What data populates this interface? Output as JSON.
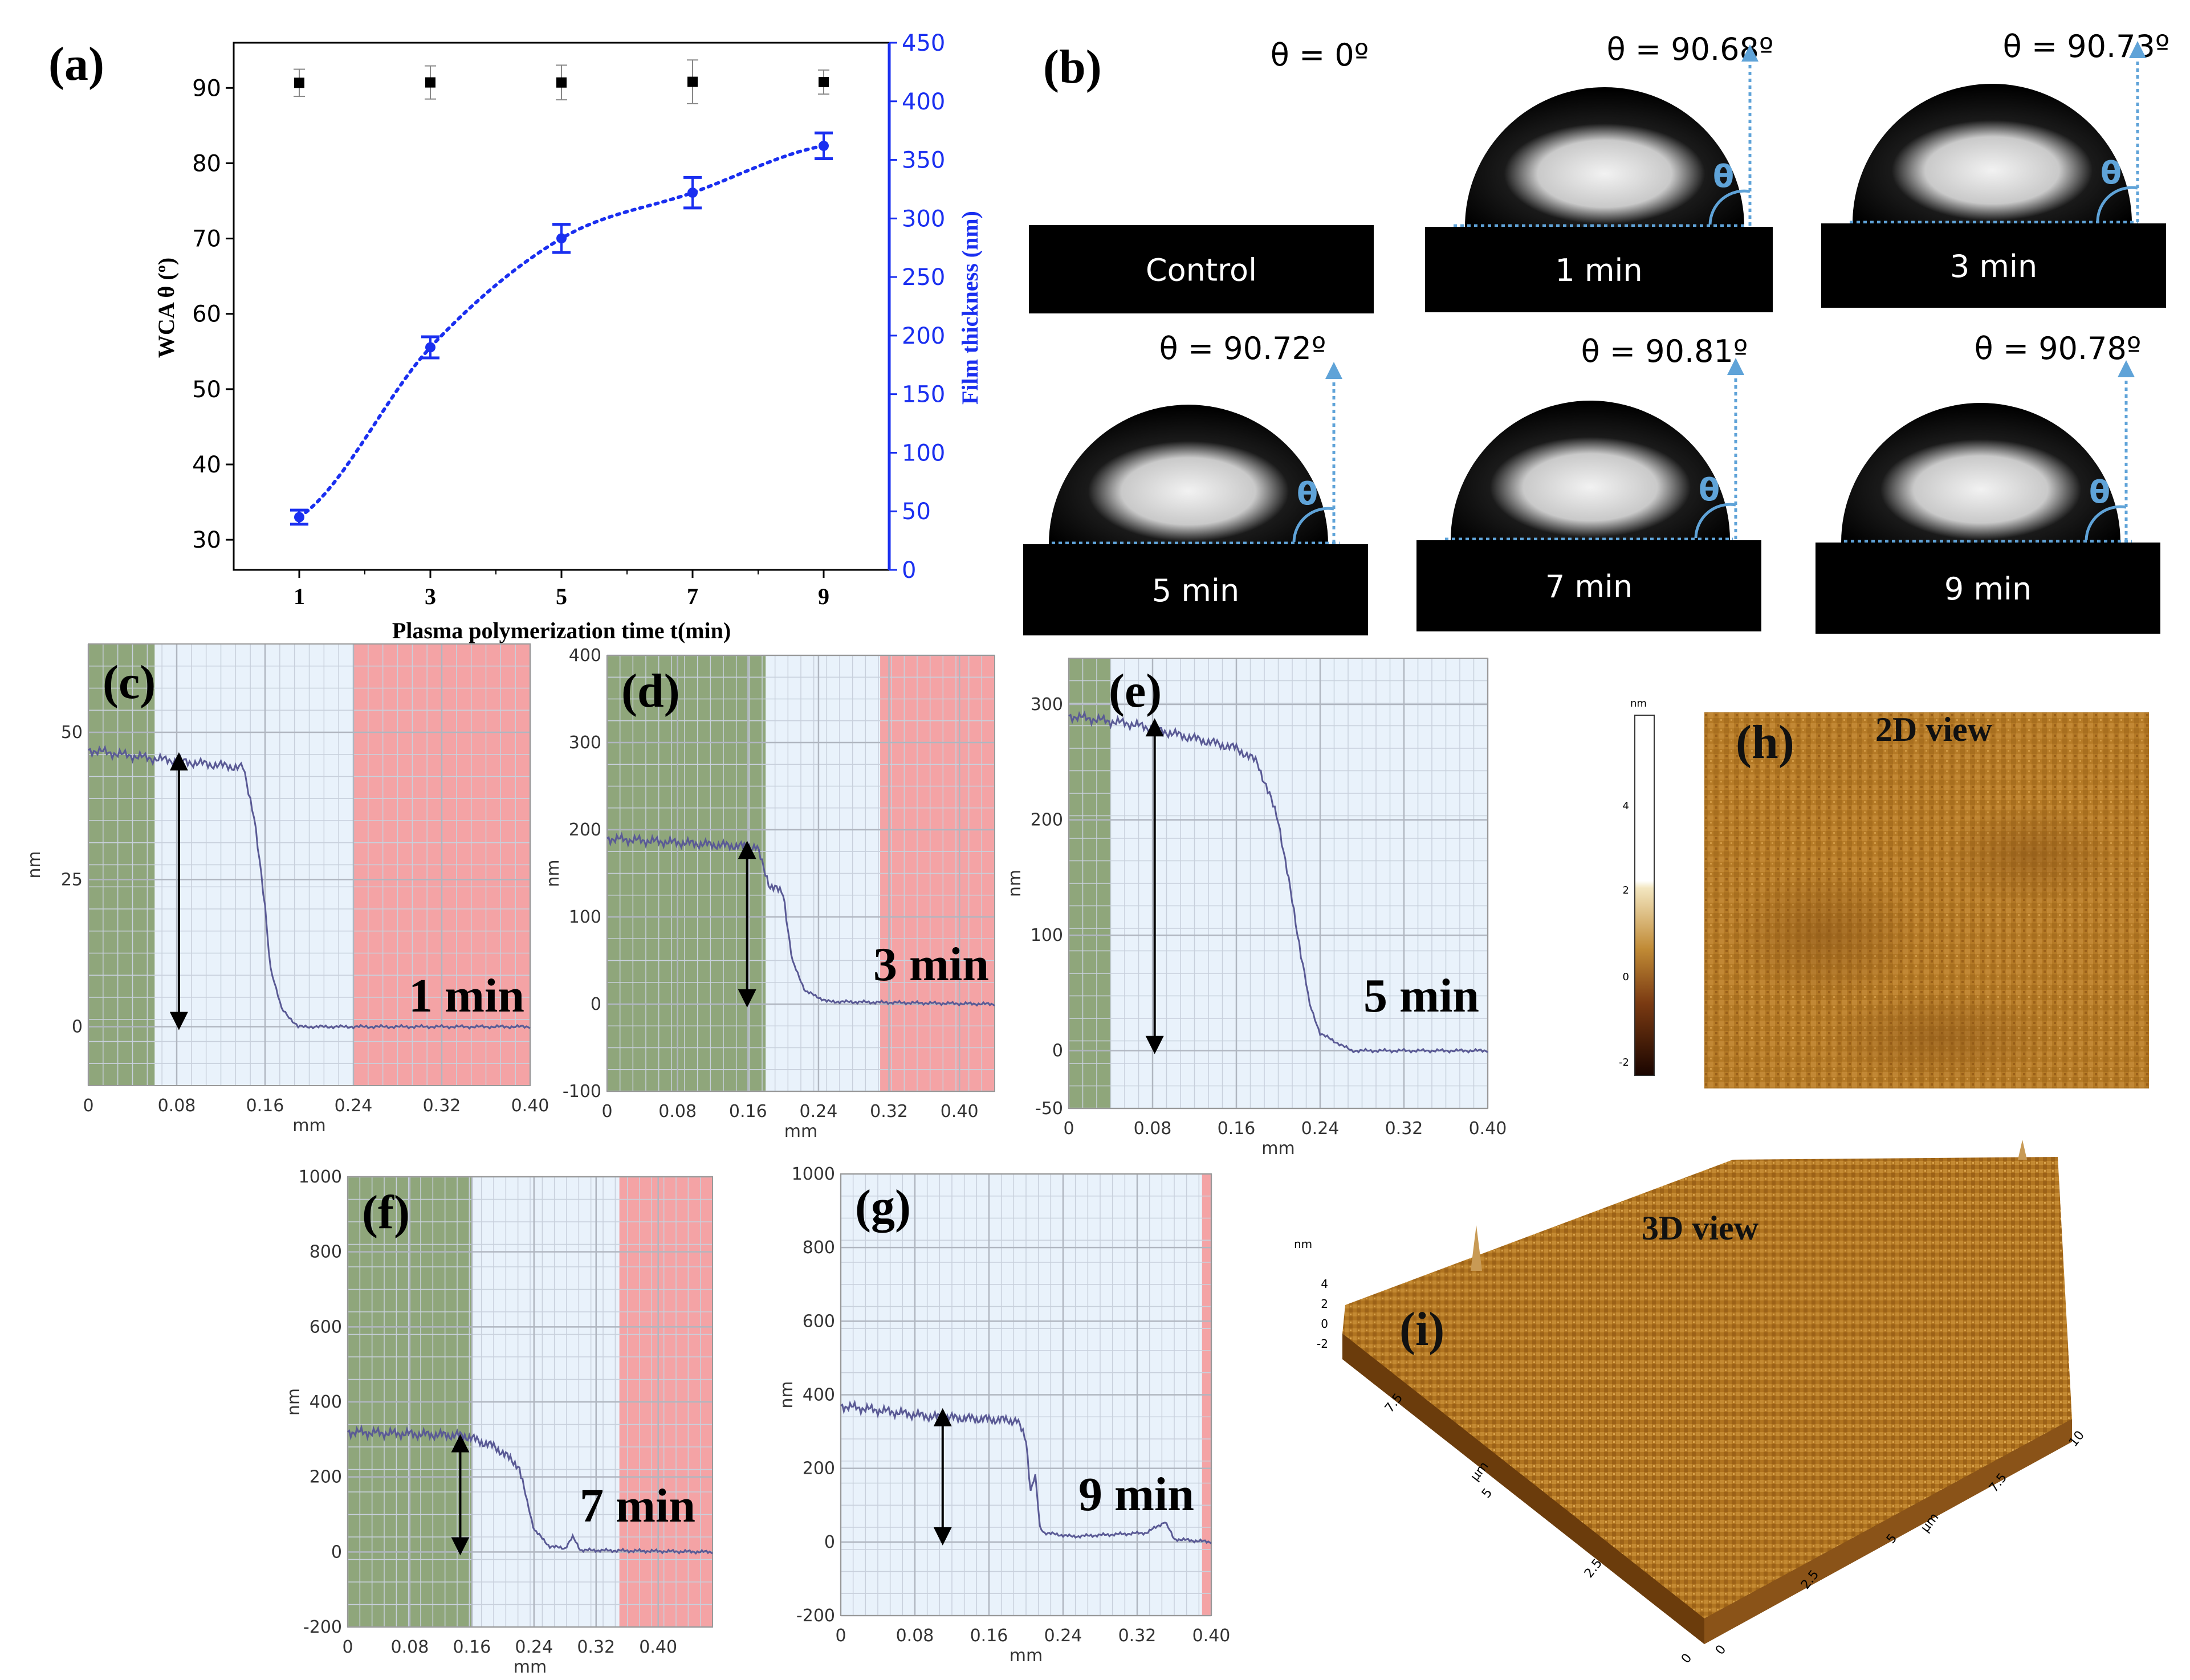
{
  "colors": {
    "wca_marker": "#000000",
    "thickness_line": "#1a2ff0",
    "axis_blue": "#1a2ff0",
    "profile_line": "#5a5a95",
    "green_region": "#8fa67b",
    "red_region": "#f4a3a5",
    "blue_region": "#e9f2fb",
    "arrow_blue": "#5fa3d8",
    "afm_brown": "#a8721e"
  },
  "chart_data": [
    {
      "panel": "(a)",
      "type": "scatter",
      "xlabel": "Plasma polymerization time t(min)",
      "ylabel": "WCA θ (º)",
      "ylabel_right": "Film thickness (nm)",
      "x": [
        1,
        3,
        5,
        7,
        9
      ],
      "xticks": [
        "1",
        "3",
        "5",
        "7",
        "9"
      ],
      "xlim": [
        0,
        10
      ],
      "ylim": [
        26,
        96
      ],
      "ylim_right": [
        0,
        450
      ],
      "yticks": [
        "30",
        "40",
        "50",
        "60",
        "70",
        "80",
        "90"
      ],
      "yticks_right": [
        "0",
        "50",
        "100",
        "150",
        "200",
        "250",
        "300",
        "350",
        "400",
        "450"
      ],
      "series": [
        {
          "name": "WCA",
          "axis": "left",
          "marker": "square",
          "values": [
            90.68,
            90.73,
            90.72,
            90.81,
            90.78
          ],
          "errors": [
            1.8,
            2.2,
            2.3,
            2.9,
            1.6
          ]
        },
        {
          "name": "Film thickness",
          "axis": "right",
          "marker": "circle",
          "style": "dotted-fit",
          "values": [
            45,
            190,
            283,
            322,
            362
          ],
          "errors": [
            6,
            9,
            12,
            13,
            11
          ]
        }
      ]
    },
    {
      "panel": "(c)",
      "type": "line",
      "xlabel": "mm",
      "ylabel": "nm",
      "label": "1 min",
      "xlim": [
        0,
        0.4
      ],
      "ylim": [
        -10,
        65
      ],
      "xticks": [
        "0",
        "0.08",
        "0.16",
        "0.24",
        "0.32",
        "0.40"
      ],
      "yticks": [
        "0",
        "25",
        "50"
      ],
      "regions": {
        "green": [
          0,
          0.06
        ],
        "red": [
          0.24,
          0.4
        ]
      },
      "x": [
        0,
        0.06,
        0.14,
        0.15,
        0.16,
        0.165,
        0.175,
        0.19,
        0.22,
        0.4
      ],
      "values": [
        47,
        45.5,
        44,
        36,
        20,
        10,
        3,
        0,
        0,
        0
      ]
    },
    {
      "panel": "(d)",
      "type": "line",
      "xlabel": "mm",
      "ylabel": "nm",
      "label": "3 min",
      "xlim": [
        0,
        0.44
      ],
      "ylim": [
        -100,
        400
      ],
      "xticks": [
        "0",
        "0.08",
        "0.16",
        "0.24",
        "0.32",
        "0.40"
      ],
      "yticks": [
        "-100",
        "0",
        "100",
        "200",
        "300",
        "400"
      ],
      "regions": {
        "green": [
          0,
          0.18
        ],
        "red": [
          0.31,
          0.44
        ]
      },
      "x": [
        0,
        0.17,
        0.185,
        0.2,
        0.21,
        0.225,
        0.25,
        0.44
      ],
      "values": [
        190,
        180,
        135,
        128,
        50,
        15,
        3,
        0
      ]
    },
    {
      "panel": "(e)",
      "type": "line",
      "xlabel": "mm",
      "ylabel": "nm",
      "label": "5 min",
      "xlim": [
        0,
        0.4
      ],
      "ylim": [
        -50,
        340
      ],
      "xticks": [
        "0",
        "0.08",
        "0.16",
        "0.24",
        "0.32",
        "0.40"
      ],
      "yticks": [
        "-50",
        "0",
        "100",
        "200",
        "300"
      ],
      "regions": {
        "green": [
          0,
          0.04
        ]
      },
      "x": [
        0,
        0.06,
        0.16,
        0.18,
        0.2,
        0.215,
        0.23,
        0.24,
        0.27,
        0.4
      ],
      "values": [
        290,
        283,
        262,
        250,
        200,
        120,
        40,
        15,
        0,
        0
      ]
    },
    {
      "panel": "(f)",
      "type": "line",
      "xlabel": "mm",
      "ylabel": "nm",
      "label": "7 min",
      "xlim": [
        0,
        0.47
      ],
      "ylim": [
        -200,
        1000
      ],
      "xticks": [
        "0",
        "0.08",
        "0.16",
        "0.24",
        "0.32",
        "0.40"
      ],
      "yticks": [
        "-200",
        "0",
        "200",
        "400",
        "600",
        "800",
        "1000"
      ],
      "regions": {
        "green": [
          0,
          0.16
        ],
        "red": [
          0.35,
          0.47
        ]
      },
      "x": [
        0,
        0.15,
        0.19,
        0.22,
        0.24,
        0.26,
        0.28,
        0.29,
        0.3,
        0.47
      ],
      "values": [
        320,
        310,
        280,
        230,
        60,
        15,
        10,
        40,
        5,
        0
      ]
    },
    {
      "panel": "(g)",
      "type": "line",
      "xlabel": "mm",
      "ylabel": "nm",
      "label": "9 min",
      "xlim": [
        0,
        0.4
      ],
      "ylim": [
        -200,
        1000
      ],
      "xticks": [
        "0",
        "0.08",
        "0.16",
        "0.24",
        "0.32",
        "0.40"
      ],
      "yticks": [
        "-200",
        "0",
        "200",
        "400",
        "600",
        "800",
        "1000"
      ],
      "regions": {
        "red": [
          0.39,
          0.4
        ]
      },
      "x": [
        0,
        0.1,
        0.19,
        0.2,
        0.205,
        0.21,
        0.215,
        0.22,
        0.25,
        0.33,
        0.35,
        0.36,
        0.4
      ],
      "values": [
        370,
        340,
        330,
        280,
        140,
        180,
        40,
        25,
        15,
        25,
        55,
        8,
        0
      ]
    }
  ],
  "panel_labels": {
    "a": "(a)",
    "b": "(b)",
    "c": "(c)",
    "d": "(d)",
    "e": "(e)",
    "f": "(f)",
    "g": "(g)",
    "h": "(h)",
    "i": "(i)"
  },
  "droplets": [
    {
      "theta": "θ = 0º",
      "label": "Control",
      "has_drop": false
    },
    {
      "theta": "θ = 90.68º",
      "label": "1 min",
      "has_drop": true
    },
    {
      "theta": "θ = 90.73º",
      "label": "3 min",
      "has_drop": true
    },
    {
      "theta": "θ = 90.72º",
      "label": "5 min",
      "has_drop": true
    },
    {
      "theta": "θ = 90.81º",
      "label": "7 min",
      "has_drop": true
    },
    {
      "theta": "θ = 90.78º",
      "label": "9 min",
      "has_drop": true
    }
  ],
  "theta_symbol": "θ",
  "afm_2d": {
    "title": "2D view",
    "colorbar_unit": "nm",
    "colorbar_ticks": [
      "4",
      "2",
      "0",
      "-2"
    ]
  },
  "afm_3d": {
    "title": "3D view",
    "z_unit": "nm",
    "z_ticks": [
      "4",
      "2",
      "0",
      "-2"
    ],
    "x_unit": "µm",
    "x_ticks": [
      "0",
      "2.5",
      "5",
      "7.5",
      "10"
    ],
    "y_unit": "µm",
    "y_ticks": [
      "2.5",
      "5",
      "7.5"
    ]
  }
}
